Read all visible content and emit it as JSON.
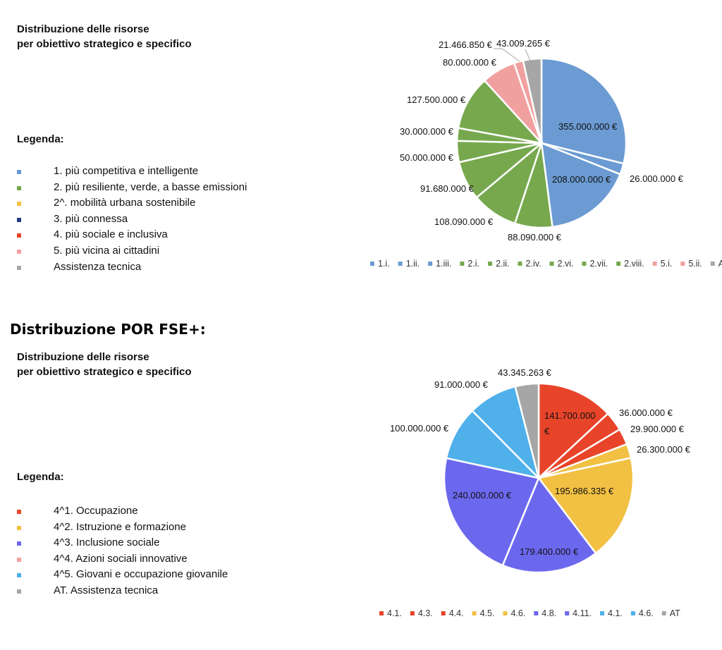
{
  "section2_title": "Distribuzione POR FSE+:",
  "chart_data": [
    {
      "type": "pie",
      "subtitle": [
        "Distribuzione delle risorse",
        "per obiettivo strategico e specifico"
      ],
      "legend_title": "Legenda:",
      "legend": [
        {
          "label": "1. più competitiva e intelligente",
          "color": "#6B9BD2"
        },
        {
          "label": "2. più resiliente, verde, a basse emissioni",
          "color": "#77A84E"
        },
        {
          "label": "2^. mobilità urbana sostenibile",
          "color": "#F2C043"
        },
        {
          "label": "3. più connessa",
          "color": "#1F3A7A"
        },
        {
          "label": "4. più sociale e inclusiva",
          "color": "#E8442A"
        },
        {
          "label": "5. più vicina ai cittadini",
          "color": "#F1A0A0"
        },
        {
          "label": "Assistenza tecnica",
          "color": "#A6A6A6"
        }
      ],
      "slices": [
        {
          "category": "1.i.",
          "value": 355000000,
          "label": "355.000.000  €",
          "color": "#6B9BD2"
        },
        {
          "category": "1.ii.",
          "value": 26000000,
          "label": "26.000.000  €",
          "color": "#6B9BD2"
        },
        {
          "category": "1.iii.",
          "value": 208000000,
          "label": "208.000.000  €",
          "color": "#6B9BD2"
        },
        {
          "category": "2.i.",
          "value": 88090000,
          "label": "88.090.000  €",
          "color": "#77A84E"
        },
        {
          "category": "2.ii.",
          "value": 108090000,
          "label": "108.090.000  €",
          "color": "#77A84E"
        },
        {
          "category": "2.iv.",
          "value": 91680000,
          "label": "91.680.000  €",
          "color": "#77A84E"
        },
        {
          "category": "2.vi.",
          "value": 50000000,
          "label": "50.000.000  €",
          "color": "#77A84E"
        },
        {
          "category": "2.vii.",
          "value": 30000000,
          "label": "30.000.000  €",
          "color": "#77A84E"
        },
        {
          "category": "2.viii.",
          "value": 127500000,
          "label": "127.500.000  €",
          "color": "#77A84E"
        },
        {
          "category": "5.i.",
          "value": 80000000,
          "label": "80.000.000  €",
          "color": "#F1A0A0"
        },
        {
          "category": "5.ii.",
          "value": 21466850,
          "label": "21.466.850  €",
          "color": "#F1A0A0"
        },
        {
          "category": "AT",
          "value": 43009265,
          "label": "43.009.265  €",
          "color": "#A6A6A6"
        }
      ]
    },
    {
      "type": "pie",
      "subtitle": [
        "Distribuzione delle risorse",
        "per obiettivo strategico e specifico"
      ],
      "legend_title": "Legenda:",
      "legend": [
        {
          "label": "4^1. Occupazione",
          "color": "#E8442A"
        },
        {
          "label": "4^2. Istruzione e formazione",
          "color": "#F2C043"
        },
        {
          "label": "4^3. Inclusione sociale",
          "color": "#6C68EE"
        },
        {
          "label": "4^4. Azioni sociali innovative",
          "color": "#F1A0A0"
        },
        {
          "label": "4^5. Giovani e occupazione giovanile",
          "color": "#4FB0EA"
        },
        {
          "label": "AT. Assistenza tecnica",
          "color": "#A6A6A6"
        }
      ],
      "slices": [
        {
          "category": "4.1.",
          "value": 141700000,
          "label_lines": [
            "141.700.000",
            "€"
          ],
          "color": "#E8442A"
        },
        {
          "category": "4.3.",
          "value": 36000000,
          "label": "36.000.000  €",
          "color": "#E8442A"
        },
        {
          "category": "4.4.",
          "value": 29900000,
          "label": "29.900.000  €",
          "color": "#E8442A"
        },
        {
          "category": "4.5.",
          "value": 26300000,
          "label": "26.300.000  €",
          "color": "#F2C043"
        },
        {
          "category": "4.6.",
          "value": 195986335,
          "label": "195.986.335  €",
          "color": "#F2C043"
        },
        {
          "category": "4.8.",
          "value": 179400000,
          "label": "179.400.000  €",
          "color": "#6C68EE"
        },
        {
          "category": "4.11.",
          "value": 240000000,
          "label": "240.000.000  €",
          "color": "#6C68EE"
        },
        {
          "category": "4.1.",
          "value": 100000000,
          "label": "100.000.000  €",
          "color": "#4FB0EA"
        },
        {
          "category": "4.6.",
          "value": 91000000,
          "label": "91.000.000  €",
          "color": "#4FB0EA"
        },
        {
          "category": "AT",
          "value": 43345263,
          "label": "43.345.263  €",
          "color": "#A6A6A6"
        }
      ]
    }
  ]
}
